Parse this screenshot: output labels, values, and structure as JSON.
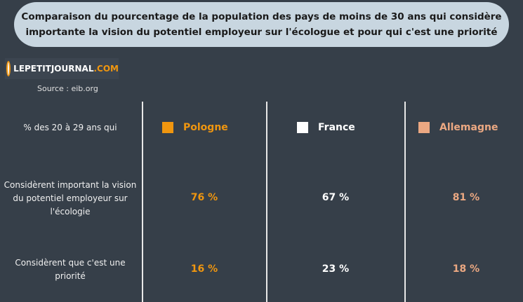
{
  "chart_data": {
    "type": "table",
    "title": "Comparaison du pourcentage de la population des pays de moins de 30 ans qui considère importante la vision du potentiel employeur sur l'écologue et pour qui c'est une priorité",
    "source": "Source : eib.org",
    "logo": "LEPETITJOURNAL.COM",
    "header_label": "% des 20 à 29 ans qui",
    "columns": [
      {
        "name": "Pologne",
        "color": "#f0960f"
      },
      {
        "name": "France",
        "color": "#ffffff"
      },
      {
        "name": "Allemagne",
        "color": "#eba882"
      }
    ],
    "rows": [
      {
        "label": "Considèrent important la vision du potentiel employeur sur l'écologie",
        "values": [
          "76 %",
          "67 %",
          "81 %"
        ]
      },
      {
        "label": "Considèrent que c'est une priorité",
        "values": [
          "16 %",
          "23 %",
          "18 %"
        ]
      }
    ]
  }
}
